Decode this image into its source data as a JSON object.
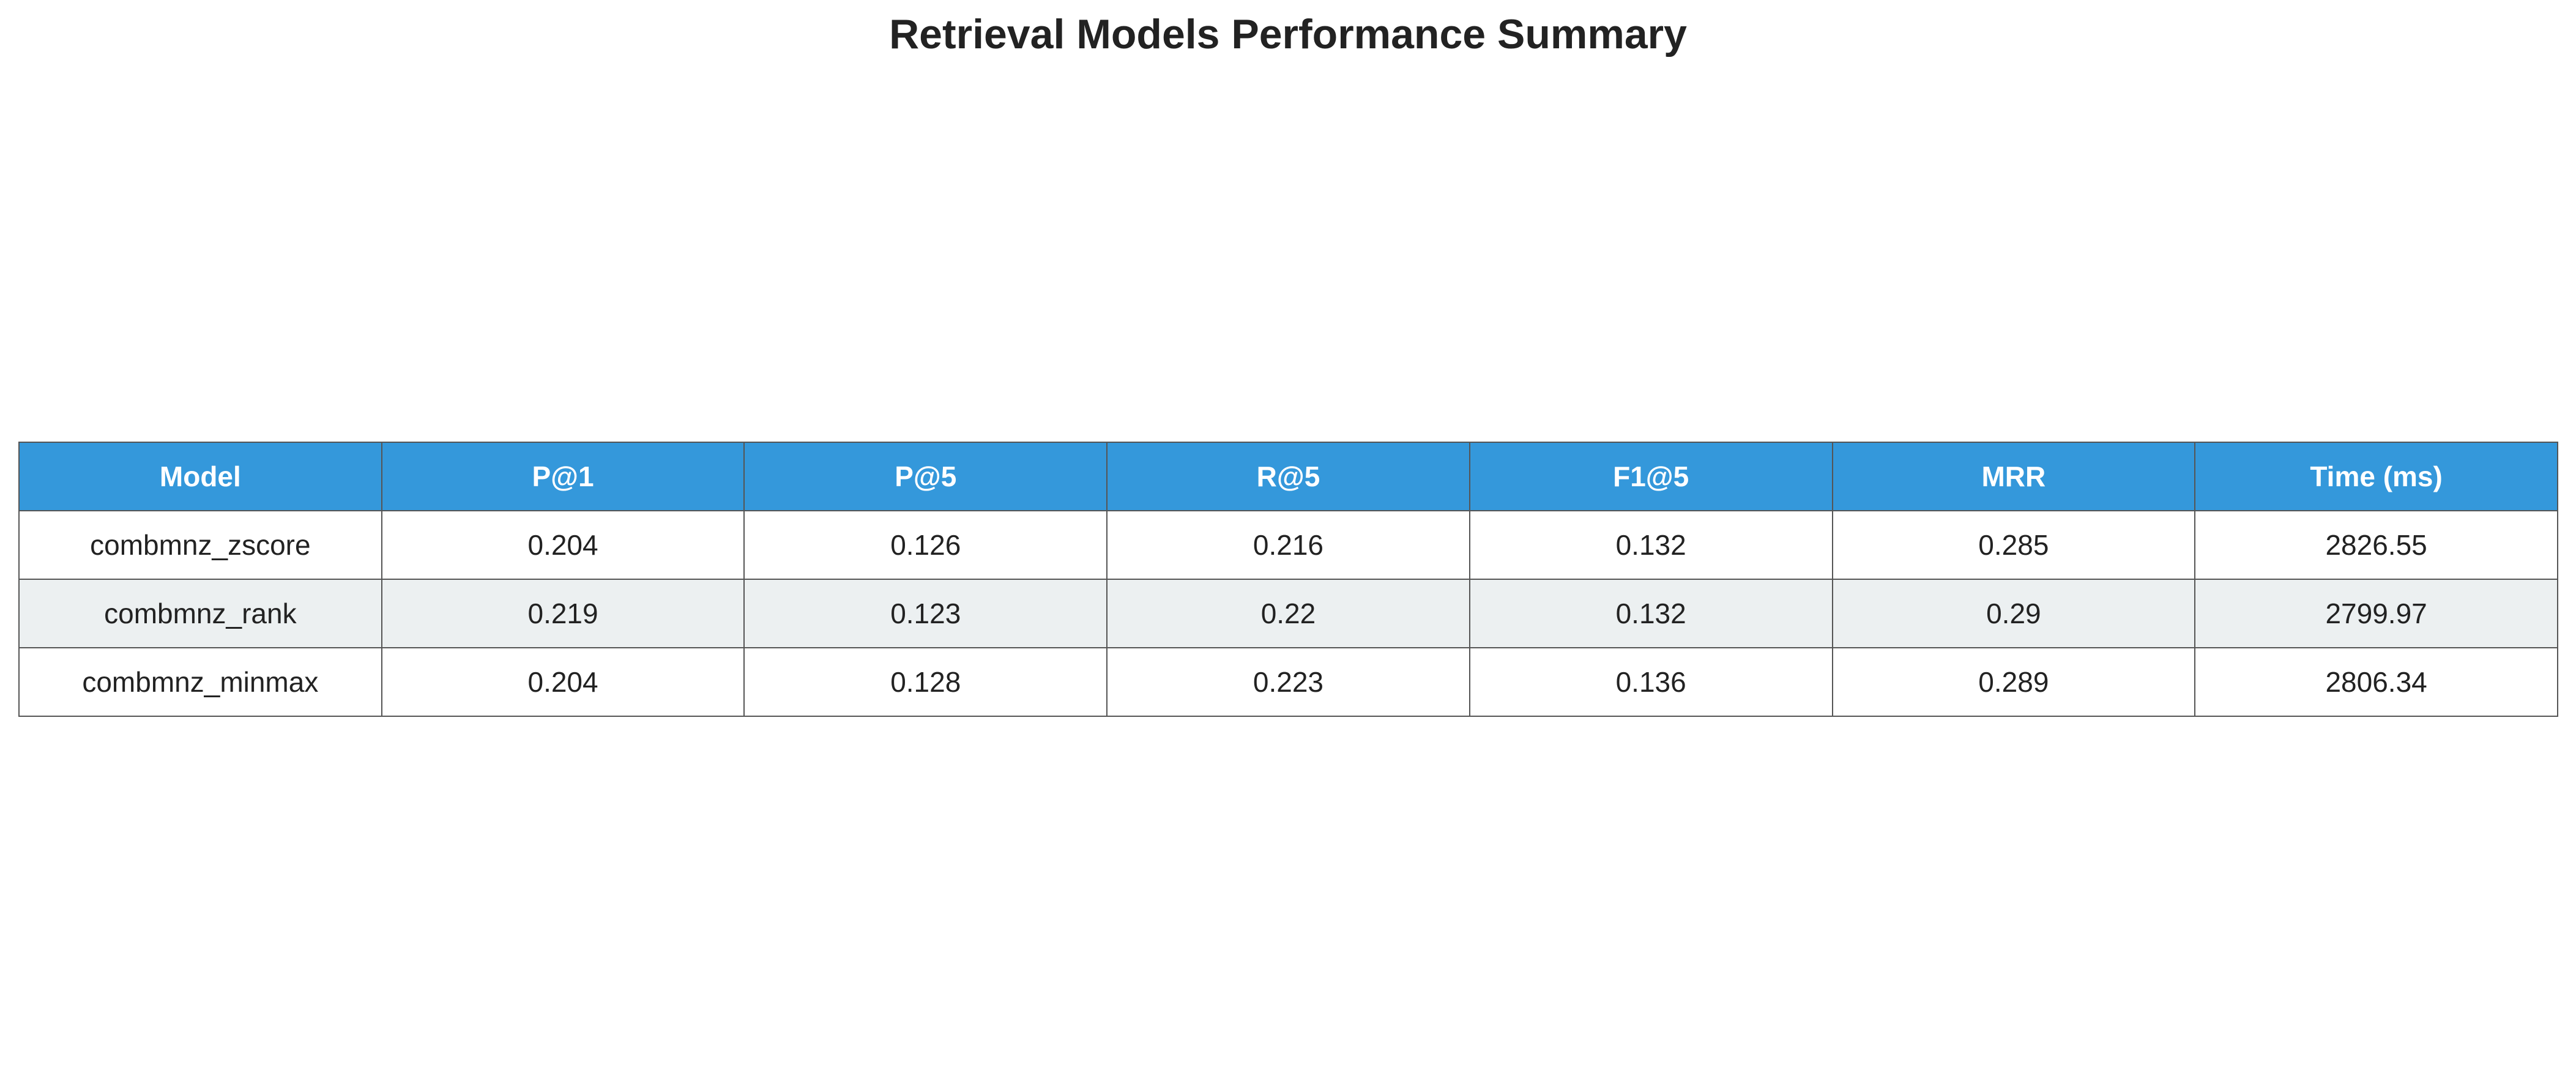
{
  "chart_data": {
    "type": "table",
    "title": "Retrieval Models Performance Summary",
    "columns": [
      "Model",
      "P@1",
      "P@5",
      "R@5",
      "F1@5",
      "MRR",
      "Time (ms)"
    ],
    "rows": [
      [
        "combmnz_zscore",
        "0.204",
        "0.126",
        "0.216",
        "0.132",
        "0.285",
        "2826.55"
      ],
      [
        "combmnz_rank",
        "0.219",
        "0.123",
        "0.22",
        "0.132",
        "0.29",
        "2799.97"
      ],
      [
        "combmnz_minmax",
        "0.204",
        "0.128",
        "0.223",
        "0.136",
        "0.289",
        "2806.34"
      ]
    ],
    "colors": {
      "header_background": "#3498db",
      "header_text": "#ffffff",
      "row_alternate_background": "#ecf0f1",
      "row_background": "#ffffff"
    }
  }
}
